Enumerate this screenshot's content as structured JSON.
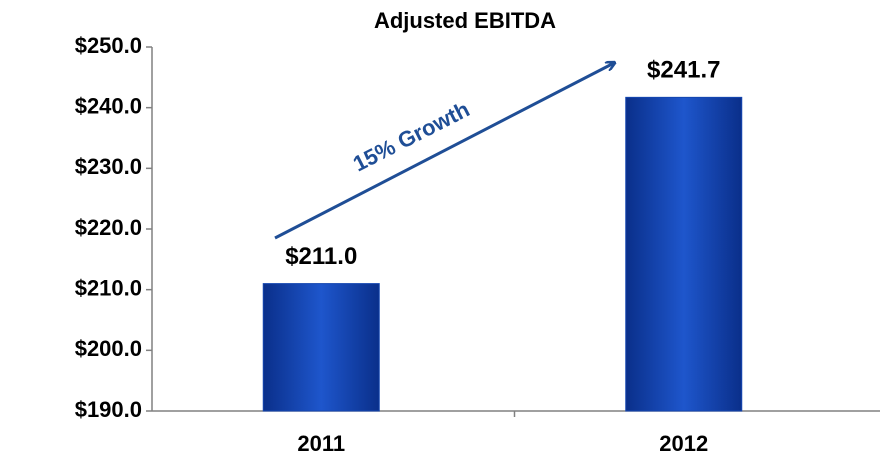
{
  "chart_data": {
    "type": "bar",
    "title": "Adjusted EBITDA",
    "categories": [
      "2011",
      "2012"
    ],
    "values": [
      211.0,
      241.7
    ],
    "value_labels": [
      "$211.0",
      "$241.7"
    ],
    "color": "#1446b0",
    "ylim": [
      190,
      250
    ],
    "yticks": [
      {
        "value": 190,
        "label": "$190.0"
      },
      {
        "value": 200,
        "label": "$200.0"
      },
      {
        "value": 210,
        "label": "$210.0"
      },
      {
        "value": 220,
        "label": "$220.0"
      },
      {
        "value": 230,
        "label": "$230.0"
      },
      {
        "value": 240,
        "label": "$240.0"
      },
      {
        "value": 250,
        "label": "$250.0"
      }
    ],
    "grid": false,
    "annotation": "15% Growth"
  }
}
